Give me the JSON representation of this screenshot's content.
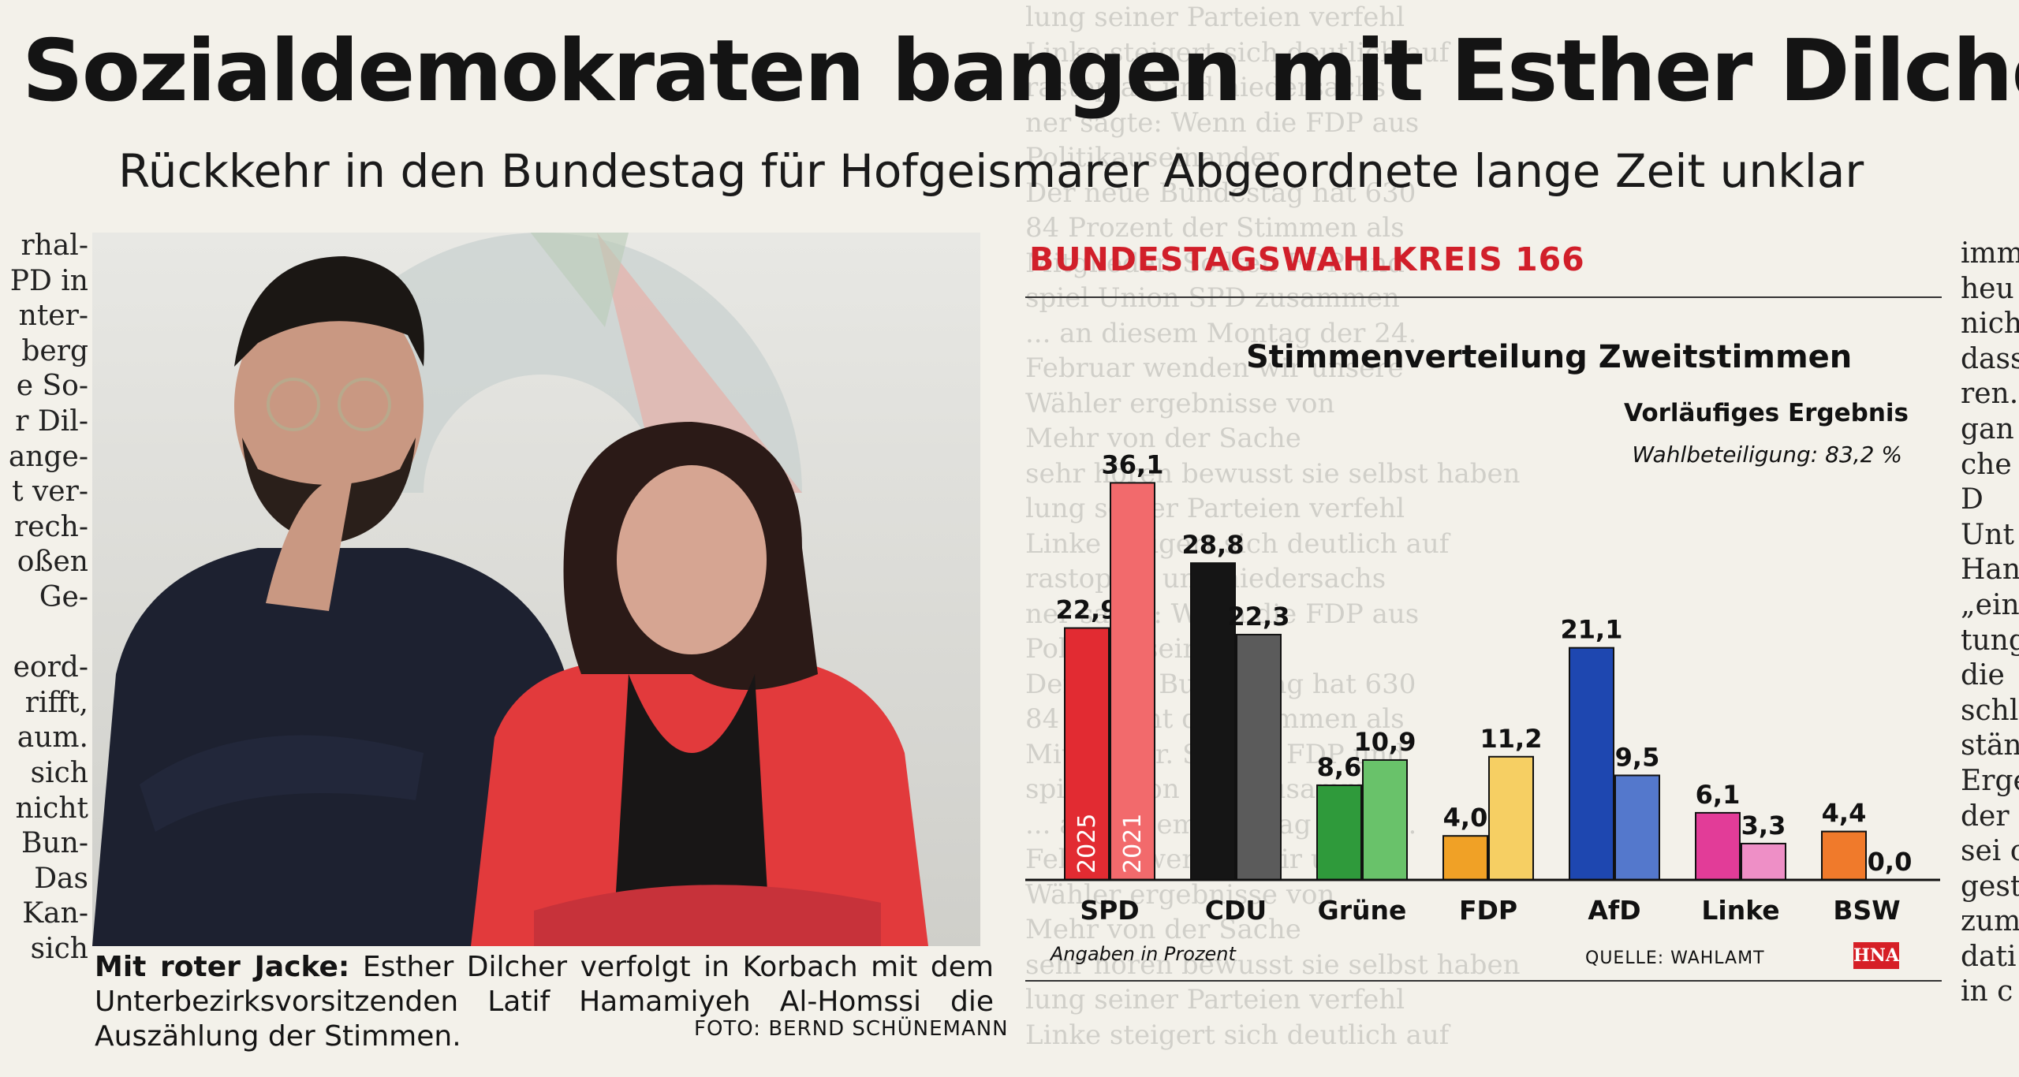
{
  "article": {
    "headline": "Sozialdemokraten bangen mit Esther Dilcher",
    "subheadline": "Rückkehr in den Bundestag für Hofgeismarer Abgeordnete lange Zeit unklar",
    "caption_bold": "Mit roter Jacke:",
    "caption_text": " Esther Dilcher verfolgt in Korbach mit dem Unterbezirksvorsitzenden Latif Hamamiyeh Al-Homssi die Auszählung der Stimmen.",
    "photo_credit": "FOTO: BERND SCHÜNEMANN"
  },
  "left_column_lines": [
    "rhal-",
    "PD in",
    "nter-",
    "berg",
    "e So-",
    "r Dil-",
    "ange-",
    "t ver-",
    "rech-",
    "oßen",
    "Ge-",
    "",
    "eord-",
    "rifft,",
    "aum.",
    "sich",
    "nicht",
    "Bun-",
    "Das",
    "Kan-",
    "sich"
  ],
  "right_column_lines": [
    "imm",
    "heu",
    "nich",
    "dass",
    "ren.",
    "gan",
    "che",
    "D",
    "Unt",
    "Han",
    "„ein",
    "tung",
    "die",
    "schl",
    "stän",
    "Erge",
    "der",
    "sei c",
    "gest",
    "zum",
    "dati",
    "in c"
  ],
  "chart_data": {
    "type": "bar",
    "district_label": "BUNDESTAGSWAHLKREIS 166",
    "title": "Stimmenverteilung Zweitstimmen",
    "subtitle": "Vorläufiges Ergebnis",
    "turnout": "Wahlbeteiligung: 83,2 %",
    "note": "Angaben in Prozent",
    "source": "QUELLE: WAHLAMT",
    "logo": "HNA",
    "categories": [
      "SPD",
      "CDU",
      "Grüne",
      "FDP",
      "AfD",
      "Linke",
      "BSW"
    ],
    "series": [
      {
        "name": "2025",
        "values": [
          22.9,
          28.8,
          8.6,
          4.0,
          21.1,
          6.1,
          4.4
        ]
      },
      {
        "name": "2021",
        "values": [
          36.1,
          22.3,
          10.9,
          11.2,
          9.5,
          3.3,
          0.0
        ]
      }
    ],
    "value_labels": [
      [
        "22,9",
        "28,8",
        "8,6",
        "4,0",
        "21,1",
        "6,1",
        "4,4"
      ],
      [
        "36,1",
        "22,3",
        "10,9",
        "11,2",
        "9,5",
        "3,3",
        "0,0"
      ]
    ],
    "colors_2025": [
      "#e22b32",
      "#151515",
      "#2f9a3b",
      "#f0a126",
      "#1e47b0",
      "#e23c98",
      "#f07a2b"
    ],
    "colors_2021": [
      "#f26a6c",
      "#5b5b5b",
      "#69c26a",
      "#f6cf63",
      "#5478cc",
      "#ee8fc6",
      "#f5a870"
    ],
    "ylim": [
      0,
      40
    ]
  }
}
